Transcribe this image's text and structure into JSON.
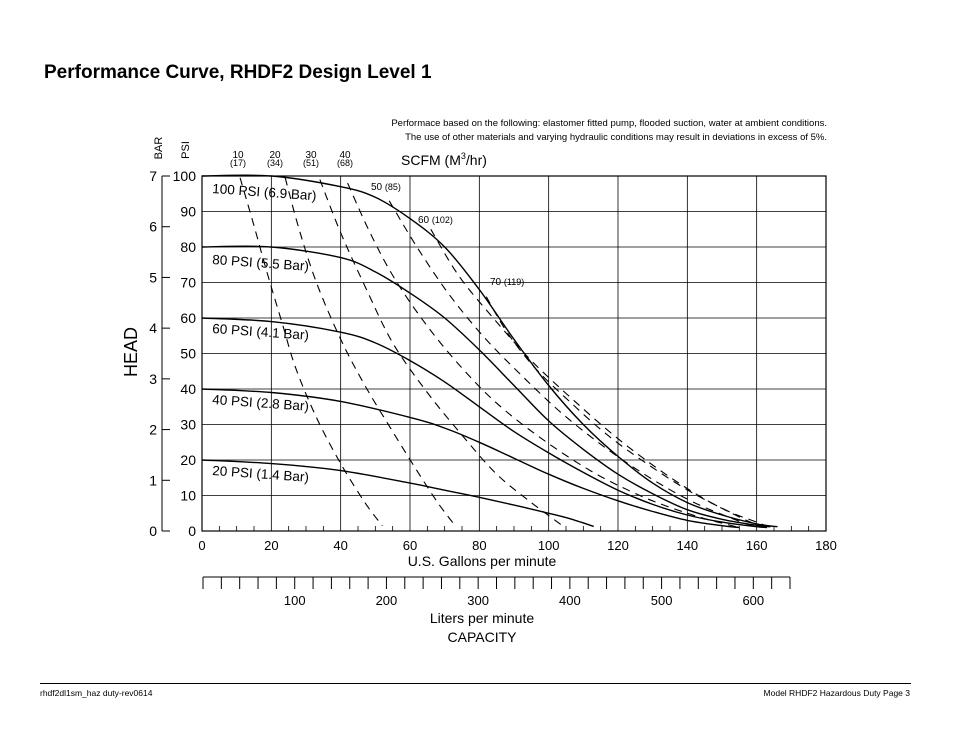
{
  "title": "Performance Curve, RHDF2 Design Level 1",
  "note_lines": [
    "Performace based on the following: elastomer fitted pump, flooded suction, water at ambient conditions.",
    "The use of other materials and varying hydraulic conditions may result in deviations in excess of 5%."
  ],
  "footer": {
    "left": "rhdf2dl1sm_haz duty-rev0614",
    "right": "Model RHDF2 Hazardous Duty Page 3"
  },
  "chart_data": {
    "type": "line",
    "x_label": "U.S. Gallons per minute",
    "x2_label": "Liters per minute",
    "capacity_label": "CAPACITY",
    "y_label": "HEAD",
    "y_psi_unit": "PSI",
    "y_bar_unit": "BAR",
    "xlim": [
      0,
      180
    ],
    "ylim_psi": [
      0,
      100
    ],
    "ylim_bar": [
      0,
      7
    ],
    "x_ticks": [
      "0",
      "20",
      "40",
      "60",
      "80",
      "100",
      "120",
      "140",
      "160",
      "180"
    ],
    "y_psi_ticks": [
      "0",
      "10",
      "20",
      "30",
      "40",
      "50",
      "60",
      "70",
      "80",
      "90",
      "100"
    ],
    "y_bar_ticks": [
      "0",
      "1",
      "2",
      "3",
      "4",
      "5",
      "6",
      "7"
    ],
    "x2_ticks": [
      "100",
      "200",
      "300",
      "400",
      "500",
      "600"
    ],
    "x2_max": 640,
    "grid": true,
    "scfm_label": "SCFM (M",
    "scfm_label_sup": "3",
    "scfm_label_end": "/hr)",
    "pressure_series": [
      {
        "name": "100 PSI (6.9 Bar)",
        "x": [
          0,
          20,
          40,
          50,
          60,
          70,
          80,
          90,
          100,
          110,
          120,
          130,
          140,
          150,
          160,
          166
        ],
        "y": [
          100,
          100,
          97,
          94,
          88,
          80,
          68,
          54,
          41,
          30,
          21,
          13.5,
          8,
          4.5,
          2,
          1.2
        ]
      },
      {
        "name": "80 PSI (5.5 Bar)",
        "x": [
          0,
          20,
          40,
          50,
          60,
          70,
          80,
          90,
          100,
          110,
          120,
          130,
          140,
          150,
          160,
          164
        ],
        "y": [
          80,
          80,
          77,
          73,
          67,
          60,
          51,
          41,
          31,
          23,
          16,
          10.5,
          6,
          3.3,
          1.6,
          1.2
        ]
      },
      {
        "name": "60 PSI (4.1 Bar)",
        "x": [
          0,
          20,
          40,
          50,
          60,
          70,
          80,
          90,
          100,
          110,
          120,
          130,
          140,
          150,
          160,
          163
        ],
        "y": [
          60,
          59,
          56,
          53,
          48,
          42,
          35,
          28,
          22,
          16.5,
          11.5,
          7.5,
          4.5,
          2.5,
          1.2,
          1
        ]
      },
      {
        "name": "40 PSI (2.8 Bar)",
        "x": [
          0,
          20,
          40,
          60,
          70,
          80,
          90,
          100,
          110,
          120,
          130,
          140,
          150,
          155
        ],
        "y": [
          40,
          39,
          36.5,
          32,
          29,
          25,
          20.5,
          16,
          12,
          8.5,
          5.5,
          3,
          1.5,
          1
        ]
      },
      {
        "name": "20 PSI (1.4 Bar)",
        "x": [
          0,
          20,
          40,
          60,
          70,
          80,
          90,
          100,
          106,
          113
        ],
        "y": [
          20,
          19,
          17,
          13.5,
          11.5,
          9.5,
          7.3,
          5,
          3.5,
          1.3
        ]
      }
    ],
    "scfm_series": [
      {
        "name": "10",
        "sub": "(17)",
        "x": [
          11,
          15,
          19,
          23,
          27,
          33,
          40,
          47,
          52
        ],
        "y": [
          99.5,
          86,
          72,
          59,
          46,
          32,
          19,
          8,
          1.5
        ]
      },
      {
        "name": "20",
        "sub": "(34)",
        "x": [
          24,
          28,
          33,
          40,
          47,
          55,
          62,
          68,
          73
        ],
        "y": [
          99.5,
          85,
          70,
          54,
          41,
          28,
          17,
          8,
          1.5
        ]
      },
      {
        "name": "30",
        "sub": "(51)",
        "x": [
          34,
          40,
          47,
          55,
          65,
          75,
          85,
          95,
          104
        ],
        "y": [
          99,
          84,
          69,
          53,
          39,
          27,
          16,
          8,
          1.5
        ]
      },
      {
        "name": "40",
        "sub": "(68)",
        "x": [
          42,
          48,
          55,
          64,
          74,
          85,
          98,
          112,
          124,
          134,
          145,
          155
        ],
        "y": [
          98,
          85,
          72,
          59,
          47,
          36,
          26,
          17,
          11,
          7,
          3.5,
          1
        ]
      },
      {
        "name": "50",
        "sub": "(85)",
        "x": [
          54,
          62,
          71,
          81,
          92,
          104,
          117,
          130,
          142,
          153,
          160
        ],
        "y": [
          93,
          80,
          67,
          55,
          44,
          33,
          23,
          14.5,
          8,
          3.5,
          1
        ]
      },
      {
        "name": "60",
        "sub": "(102)",
        "x": [
          66,
          74,
          84,
          95,
          107,
          120,
          133,
          145,
          156,
          162
        ],
        "y": [
          85,
          72,
          60,
          48,
          37,
          26,
          16.5,
          9,
          3.5,
          1
        ]
      },
      {
        "name": "70",
        "sub": "(119)",
        "x": [
          82,
          88,
          96,
          106,
          117,
          129,
          141,
          152,
          160,
          164
        ],
        "y": [
          66,
          56,
          46,
          36.5,
          27,
          18.5,
          11,
          5.5,
          2.5,
          1
        ]
      }
    ],
    "scfm_label_positions": [
      {
        "name": "10",
        "sub": "(17)"
      },
      {
        "name": "20",
        "sub": "(34)"
      },
      {
        "name": "30",
        "sub": "(51)"
      },
      {
        "name": "40",
        "sub": "(68)"
      },
      {
        "name": "50",
        "sub": "(85)"
      },
      {
        "name": "60",
        "sub": "(102)"
      },
      {
        "name": "70",
        "sub": "(119)"
      }
    ]
  }
}
